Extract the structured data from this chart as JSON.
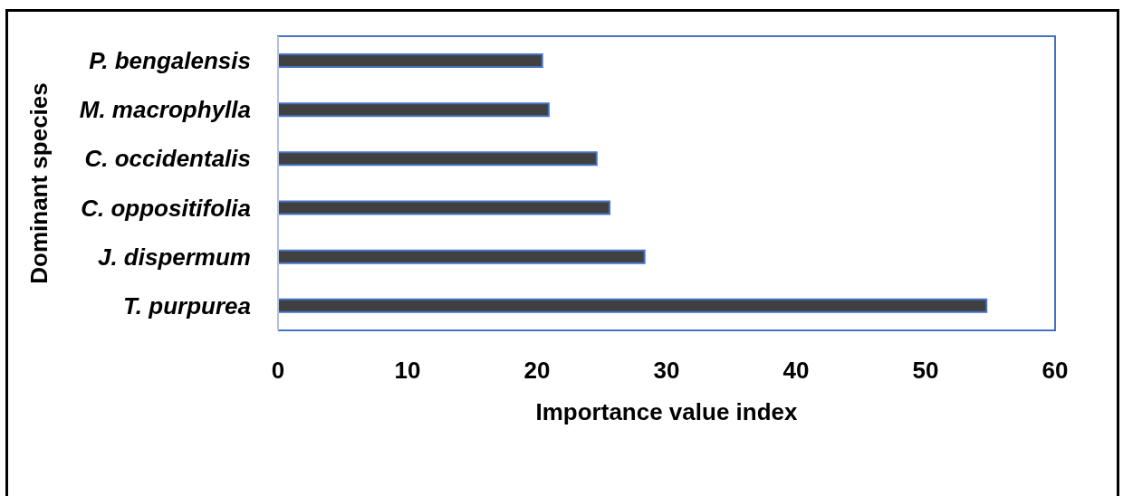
{
  "chart_data": {
    "type": "bar",
    "orientation": "horizontal",
    "xlabel": "Importance value index",
    "ylabel": "Dominant species",
    "categories": [
      "P. bengalensis",
      "M. macrophylla",
      "C. occidentalis",
      "C. oppositifolia",
      "J. dispermum",
      "T. purpurea"
    ],
    "values": [
      20.4,
      20.9,
      24.6,
      25.6,
      28.3,
      54.7
    ],
    "color": "#404040",
    "xlim": [
      0,
      60
    ],
    "xticks": [
      0,
      10,
      20,
      30,
      40,
      50,
      60
    ]
  }
}
